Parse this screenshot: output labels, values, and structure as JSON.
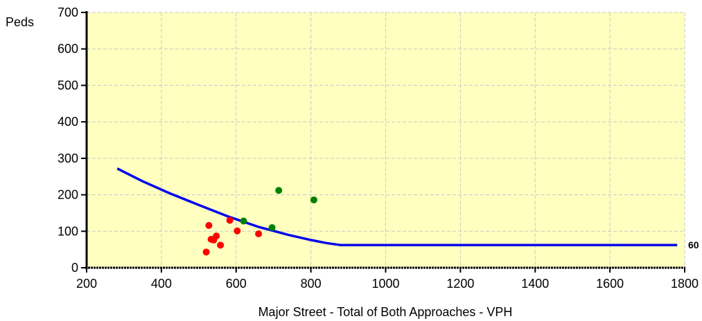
{
  "chart_data": {
    "type": "scatter",
    "title": "",
    "xlabel": "Major Street - Total of Both Approaches - VPH",
    "ylabel": "Peds",
    "xlim": [
      200,
      1800
    ],
    "ylim": [
      0,
      700
    ],
    "x_ticks": [
      200,
      400,
      600,
      800,
      1000,
      1200,
      1400,
      1600,
      1800
    ],
    "y_ticks": [
      0,
      100,
      200,
      300,
      400,
      500,
      600,
      700
    ],
    "grid": true,
    "colors": {
      "plot_background": "#ffffc0",
      "grid": "#c8c8c8",
      "threshold_line": "#0000ee",
      "below_threshold": "#ff0000",
      "above_threshold": "#008000"
    },
    "threshold_curve": {
      "points": [
        [
          282,
          272
        ],
        [
          350,
          237
        ],
        [
          420,
          205
        ],
        [
          500,
          172
        ],
        [
          580,
          140
        ],
        [
          660,
          112
        ],
        [
          740,
          90
        ],
        [
          800,
          76
        ],
        [
          840,
          68
        ],
        [
          880,
          62
        ],
        [
          1780,
          62
        ]
      ],
      "end_label": "60"
    },
    "series": [
      {
        "color_role": "below",
        "points": [
          [
            520,
            43
          ],
          [
            527,
            116
          ],
          [
            533,
            78
          ],
          [
            540,
            76
          ],
          [
            547,
            87
          ],
          [
            558,
            62
          ],
          [
            583,
            130
          ],
          [
            603,
            101
          ],
          [
            660,
            93
          ]
        ]
      },
      {
        "color_role": "above",
        "points": [
          [
            620,
            128
          ],
          [
            696,
            110
          ],
          [
            714,
            212
          ],
          [
            808,
            186
          ]
        ]
      }
    ]
  }
}
